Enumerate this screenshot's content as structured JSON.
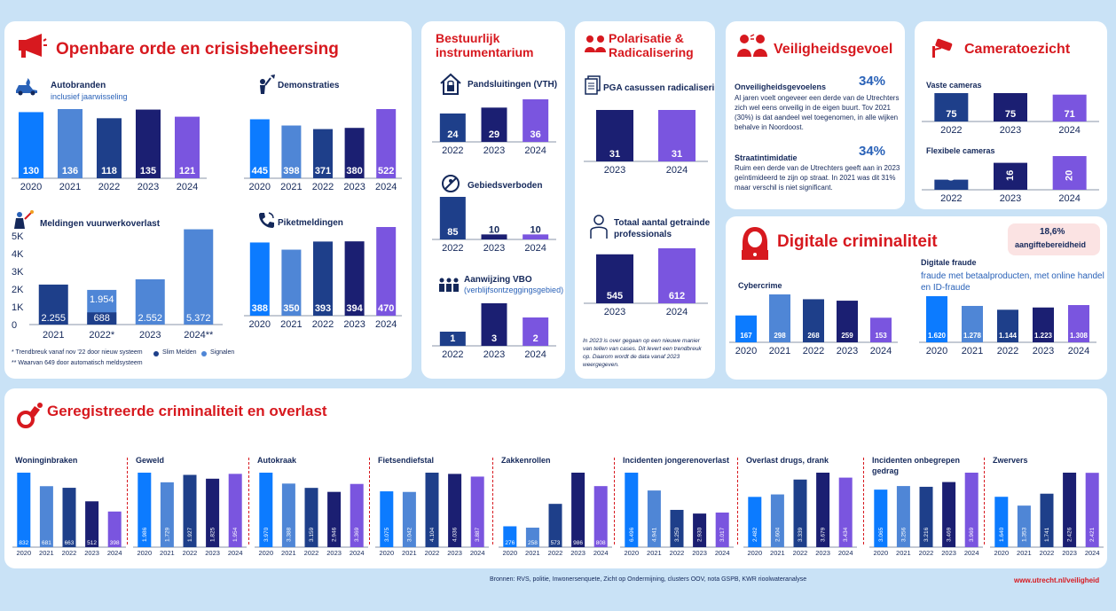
{
  "colors": {
    "c1": "#0c7bff",
    "c2": "#4f86d6",
    "c3": "#1e3f8a",
    "c4": "#1b1f72",
    "c5": "#7a55df",
    "axis": "#8a94a8",
    "red": "#d7191f"
  },
  "openbare": {
    "title": "Openbare orde en crisisbeheersing",
    "autobranden": {
      "title": "Autobranden",
      "sub": "inclusief jaarwisseling"
    },
    "demonstraties": {
      "title": "Demonstraties"
    },
    "vuurwerk": {
      "title": "Meldingen vuurwerkoverlast",
      "note1": "* Trendbreuk vanaf nov '22 door nieuw systeem",
      "note2": "** Waarvan 649 door automatisch meldsysteem",
      "legend_a": "Slim Melden",
      "legend_b": "Signalen"
    },
    "piket": {
      "title": "Piketmeldingen"
    }
  },
  "bestuurlijk": {
    "title1": "Bestuurlijk",
    "title2": "instrumentarium",
    "panden": {
      "title": "Pandsluitingen (VTH)"
    },
    "gebied": {
      "title": "Gebiedsverboden"
    },
    "vbo": {
      "title": "Aanwijzing VBO",
      "sub": "(verblijfsontzeggingsgebied)"
    }
  },
  "polarisatie": {
    "title1": "Polarisatie &",
    "title2": "Radicalisering",
    "pga": {
      "title": "PGA casussen radicalisering"
    },
    "prof": {
      "title1": "Totaal aantal getrainde",
      "title2": "professionals"
    },
    "note": "In 2023 is over gegaan op een nieuwe manier van tellen van cases. Dit levert een trendbreuk op. Daarom wordt de data vanaf 2023 weergegeven."
  },
  "veiligheid": {
    "title": "Veiligheidsgevoel",
    "onv_label": "Onveiligheidsgevoelens",
    "onv_pct": "34%",
    "onv_text": "Al jaren voelt ongeveer een derde van de Utrechters zich wel eens onveilig in de eigen buurt. Tov 2021 (30%) is dat aandeel wel toegenomen, in alle wijken behalve in Noordoost.",
    "str_label": "Straatintimidatie",
    "str_pct": "34%",
    "str_text": "Ruim een derde van de Utrechters geeft aan in 2023 geïntimideerd te zijn op straat. In 2021 was dit 31% maar verschil is niet significant."
  },
  "camera": {
    "title": "Cameratoezicht",
    "vaste": "Vaste cameras",
    "flex": "Flexibele cameras"
  },
  "digitaal": {
    "title": "Digitale criminaliteit",
    "badge_pct": "18,6%",
    "badge_txt": "aangiftebereidheid",
    "cyber": "Cybercrime",
    "fraude": "Digitale fraude",
    "fraude_sub1": "fraude met betaalproducten, met online handel",
    "fraude_sub2": "en ID-fraude"
  },
  "geregistreerd": {
    "title": "Geregistreerde criminaliteit en overlast"
  },
  "footer": {
    "sources": "Bronnen: RVS, politie, Inwonersenquete, Zicht op Ondermijning, clusters OOV, nota GSPB, KWR rioolwateranalyse",
    "url": "www.utrecht.nl/veiligheid"
  },
  "chart_data": [
    {
      "id": "autobranden",
      "type": "bar",
      "title": "Autobranden",
      "categories": [
        "2020",
        "2021",
        "2022",
        "2023",
        "2024"
      ],
      "values": [
        130,
        136,
        118,
        135,
        121
      ]
    },
    {
      "id": "demonstraties",
      "type": "bar",
      "title": "Demonstraties",
      "categories": [
        "2020",
        "2021",
        "2022",
        "2023",
        "2024"
      ],
      "values": [
        445,
        398,
        371,
        380,
        522
      ]
    },
    {
      "id": "vuurwerk",
      "type": "bar",
      "title": "Meldingen vuurwerkoverlast",
      "categories": [
        "2021",
        "2022*",
        "2023",
        "2024**"
      ],
      "series": [
        {
          "name": "Slim Melden",
          "values": [
            2255,
            688,
            null,
            null
          ]
        },
        {
          "name": "Signalen",
          "values": [
            null,
            1954,
            2552,
            5372
          ]
        }
      ],
      "ylim": [
        0,
        5000
      ],
      "yticks": [
        "0",
        "1K",
        "2K",
        "3K",
        "4K",
        "5K"
      ]
    },
    {
      "id": "piket",
      "type": "bar",
      "title": "Piketmeldingen",
      "categories": [
        "2020",
        "2021",
        "2022",
        "2023",
        "2024"
      ],
      "values": [
        388,
        350,
        393,
        394,
        470
      ]
    },
    {
      "id": "panden",
      "type": "bar",
      "title": "Pandsluitingen (VTH)",
      "categories": [
        "2022",
        "2023",
        "2024"
      ],
      "values": [
        24,
        29,
        36
      ]
    },
    {
      "id": "gebied",
      "type": "bar",
      "title": "Gebiedsverboden",
      "categories": [
        "2022",
        "2023",
        "2024"
      ],
      "values": [
        85,
        10,
        10
      ]
    },
    {
      "id": "vbo",
      "type": "bar",
      "title": "Aanwijzing VBO",
      "categories": [
        "2022",
        "2023",
        "2024"
      ],
      "values": [
        1,
        3,
        2
      ]
    },
    {
      "id": "pga",
      "type": "bar",
      "title": "PGA casussen radicalisering",
      "categories": [
        "2023",
        "2024"
      ],
      "values": [
        31,
        31
      ]
    },
    {
      "id": "prof",
      "type": "bar",
      "title": "Totaal aantal getrainde professionals",
      "categories": [
        "2023",
        "2024"
      ],
      "values": [
        545,
        612
      ]
    },
    {
      "id": "vaste",
      "type": "bar",
      "title": "Vaste cameras",
      "categories": [
        "2022",
        "2023",
        "2024"
      ],
      "values": [
        75,
        75,
        71
      ]
    },
    {
      "id": "flex",
      "type": "bar",
      "title": "Flexibele cameras",
      "categories": [
        "2022",
        "2023",
        "2024"
      ],
      "values": [
        6,
        16,
        20
      ]
    },
    {
      "id": "cyber",
      "type": "bar",
      "title": "Cybercrime",
      "categories": [
        "2020",
        "2021",
        "2022",
        "2023",
        "2024"
      ],
      "values": [
        167,
        298,
        268,
        259,
        153
      ]
    },
    {
      "id": "fraude",
      "type": "bar",
      "title": "Digitale fraude",
      "categories": [
        "2020",
        "2021",
        "2022",
        "2023",
        "2024"
      ],
      "values": [
        1620,
        1278,
        1144,
        1223,
        1308
      ]
    },
    {
      "id": "g1",
      "type": "bar",
      "title": "Woninginbraken",
      "categories": [
        "2020",
        "2021",
        "2022",
        "2023",
        "2024"
      ],
      "values": [
        832,
        681,
        663,
        512,
        398
      ]
    },
    {
      "id": "g2",
      "type": "bar",
      "title": "Geweld",
      "categories": [
        "2020",
        "2021",
        "2022",
        "2023",
        "2024"
      ],
      "values": [
        1986,
        1729,
        1927,
        1825,
        1954
      ]
    },
    {
      "id": "g3",
      "type": "bar",
      "title": "Autokraak",
      "categories": [
        "2020",
        "2021",
        "2022",
        "2023",
        "2024"
      ],
      "values": [
        3970,
        3388,
        3159,
        2946,
        3369
      ]
    },
    {
      "id": "g4",
      "type": "bar",
      "title": "Fietsendiefstal",
      "categories": [
        "2020",
        "2021",
        "2022",
        "2023",
        "2024"
      ],
      "values": [
        3075,
        3042,
        4104,
        4036,
        3887
      ]
    },
    {
      "id": "g5",
      "type": "bar",
      "title": "Zakkenrollen",
      "categories": [
        "2020",
        "2021",
        "2022",
        "2023",
        "2024"
      ],
      "values": [
        276,
        258,
        573,
        986,
        808
      ]
    },
    {
      "id": "g6",
      "type": "bar",
      "title": "Incidenten jongerenoverlast",
      "categories": [
        "2020",
        "2021",
        "2022",
        "2023",
        "2024"
      ],
      "values": [
        6496,
        4941,
        3250,
        2930,
        3017
      ]
    },
    {
      "id": "g7",
      "type": "bar",
      "title": "Overlast drugs, drank",
      "categories": [
        "2020",
        "2021",
        "2022",
        "2023",
        "2024"
      ],
      "values": [
        2482,
        2604,
        3339,
        3679,
        3434
      ]
    },
    {
      "id": "g8",
      "type": "bar",
      "title": "Incidenten onbegrepen gedrag",
      "categories": [
        "2020",
        "2021",
        "2022",
        "2023",
        "2024"
      ],
      "values": [
        3065,
        3256,
        3216,
        3469,
        3969
      ]
    },
    {
      "id": "g9",
      "type": "bar",
      "title": "Zwervers",
      "categories": [
        "2020",
        "2021",
        "2022",
        "2023",
        "2024"
      ],
      "values": [
        1640,
        1353,
        1741,
        2426,
        2421
      ]
    }
  ]
}
